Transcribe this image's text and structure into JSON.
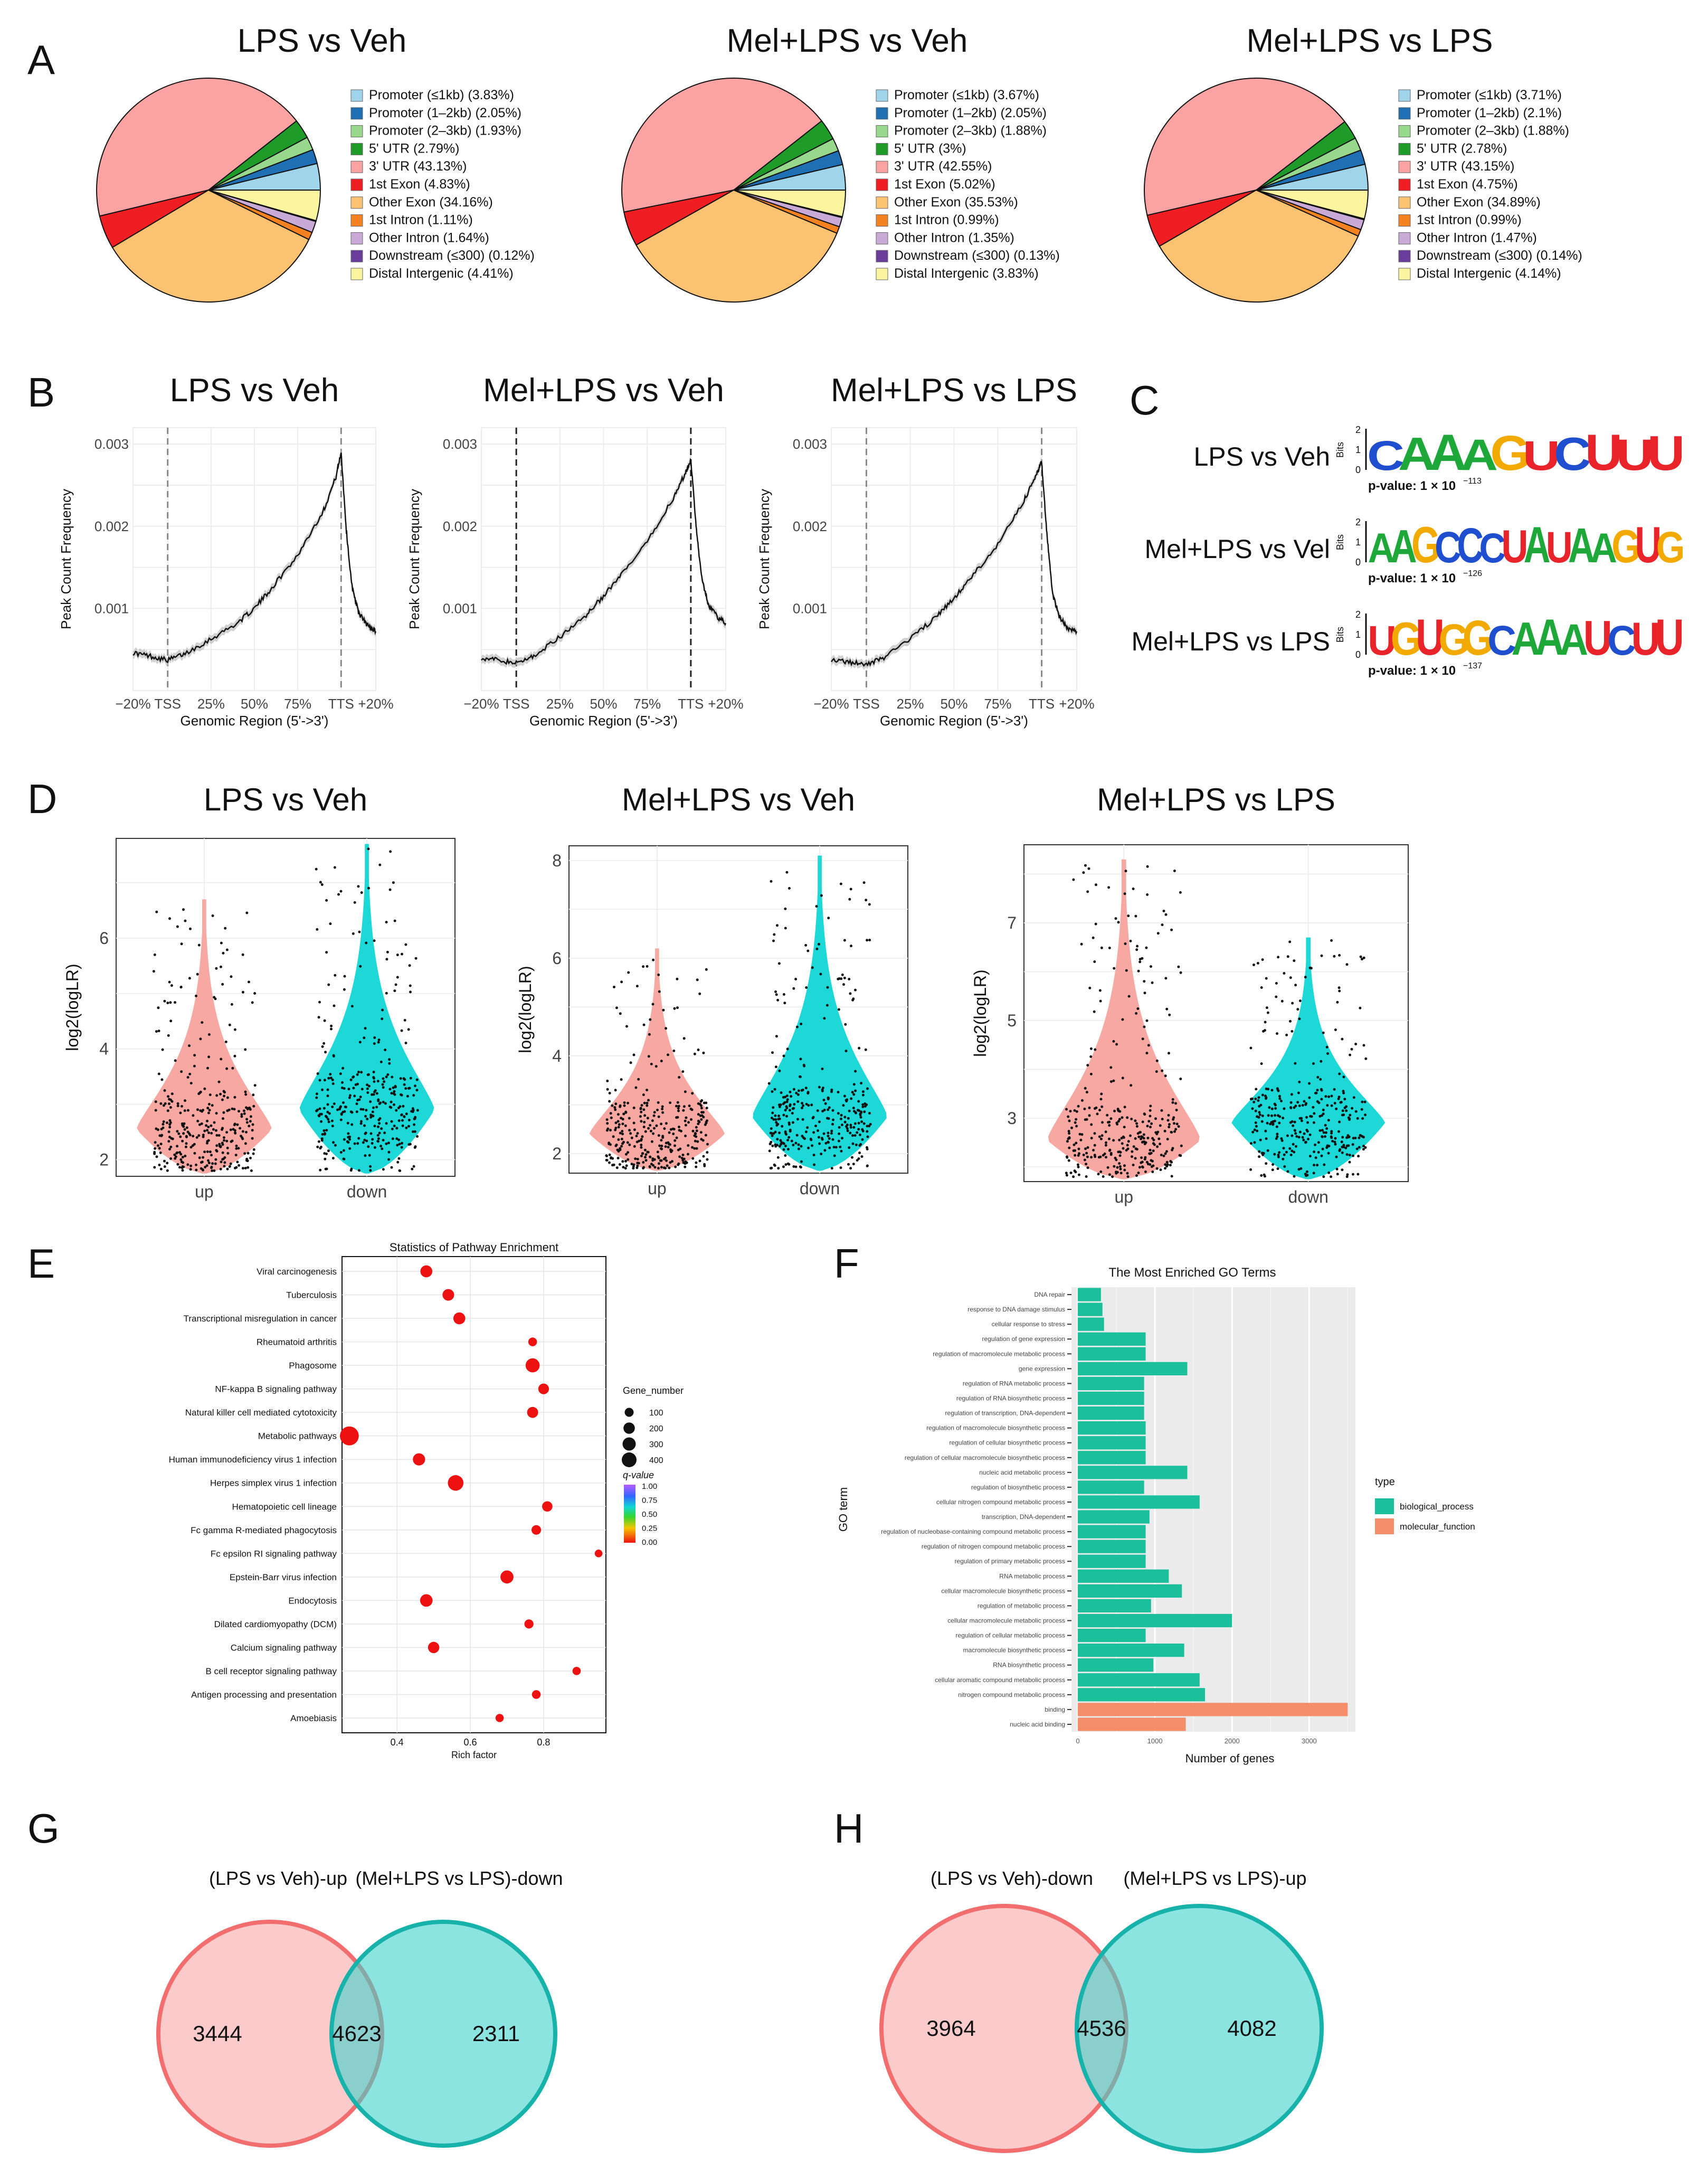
{
  "colors": {
    "promoter1": "#9fd4ea",
    "promoter2": "#1f6fb5",
    "promoter3": "#98d88c",
    "utr5": "#1e9b28",
    "utr3": "#fba3a3",
    "exon1": "#ee1e22",
    "otherExon": "#fbc271",
    "intron1": "#f58220",
    "otherIntron": "#c9a9d6",
    "downstream": "#6a3d9a",
    "distal": "#fbf5a0",
    "up": "#f8a8a2",
    "down": "#1ed8d8",
    "bio": "#1cbf9c",
    "mol": "#f58d6b",
    "vennLeft": "#f8a8a8",
    "vennRight": "#3fd2cc"
  },
  "chart_data": [
    {
      "panel": "A",
      "type": "pie",
      "subplots": [
        {
          "title": "LPS vs Veh",
          "legend": [
            "Promoter (≤1kb) (3.83%)",
            "Promoter (1–2kb) (2.05%)",
            "Promoter (2–3kb) (1.93%)",
            "5' UTR (2.79%)",
            "3' UTR (43.13%)",
            "1st Exon (4.83%)",
            "Other Exon (34.16%)",
            "1st Intron (1.11%)",
            "Other Intron (1.64%)",
            "Downstream (≤300) (0.12%)",
            "Distal Intergenic (4.41%)"
          ],
          "values": [
            3.83,
            2.05,
            1.93,
            2.79,
            43.13,
            4.83,
            34.16,
            1.11,
            1.64,
            0.12,
            4.41
          ]
        },
        {
          "title": "Mel+LPS vs Veh",
          "legend": [
            "Promoter (≤1kb) (3.67%)",
            "Promoter (1–2kb) (2.05%)",
            "Promoter (2–3kb) (1.88%)",
            "5' UTR (3%)",
            "3' UTR (42.55%)",
            "1st Exon (5.02%)",
            "Other Exon (35.53%)",
            "1st Intron (0.99%)",
            "Other Intron (1.35%)",
            "Downstream (≤300) (0.13%)",
            "Distal Intergenic (3.83%)"
          ],
          "values": [
            3.67,
            2.05,
            1.88,
            3.0,
            42.55,
            5.02,
            35.53,
            0.99,
            1.35,
            0.13,
            3.83
          ]
        },
        {
          "title": "Mel+LPS vs LPS",
          "legend": [
            "Promoter (≤1kb) (3.71%)",
            "Promoter (1–2kb) (2.1%)",
            "Promoter (2–3kb) (1.88%)",
            "5' UTR (2.78%)",
            "3' UTR (43.15%)",
            "1st Exon (4.75%)",
            "Other Exon (34.89%)",
            "1st Intron (0.99%)",
            "Other Intron (1.47%)",
            "Downstream (≤300) (0.14%)",
            "Distal Intergenic (4.14%)"
          ],
          "values": [
            3.71,
            2.1,
            1.88,
            2.78,
            43.15,
            4.75,
            34.89,
            0.99,
            1.47,
            0.14,
            4.14
          ]
        }
      ]
    },
    {
      "panel": "B",
      "type": "line",
      "xlabel": "Genomic Region (5'->3')",
      "ylabel": "Peak Count Frequency",
      "xticks": [
        "−20%",
        "TSS",
        "25%",
        "50%",
        "75%",
        "TTS",
        "+20%"
      ],
      "ylim": [
        0.0,
        0.0032
      ],
      "yticks": [
        "0.001",
        "0.002",
        "0.003"
      ],
      "x": [
        -20,
        -10,
        0,
        10,
        25,
        40,
        50,
        60,
        75,
        90,
        97,
        100,
        103,
        106,
        110,
        115,
        120
      ],
      "series": [
        {
          "title": "LPS vs Veh",
          "values": [
            0.00046,
            0.00042,
            0.00037,
            0.00045,
            0.00063,
            0.00082,
            0.001,
            0.00125,
            0.00165,
            0.0022,
            0.0026,
            0.0029,
            0.00195,
            0.0013,
            0.00095,
            0.0008,
            0.00072
          ]
        },
        {
          "title": "Mel+LPS vs Veh",
          "values": [
            0.0004,
            0.00037,
            0.00033,
            0.00042,
            0.00065,
            0.00092,
            0.00115,
            0.0014,
            0.0018,
            0.00235,
            0.00265,
            0.00282,
            0.002,
            0.0014,
            0.00105,
            0.0009,
            0.00082
          ]
        },
        {
          "title": "Mel+LPS vs LPS",
          "values": [
            0.00038,
            0.00035,
            0.00031,
            0.0004,
            0.00063,
            0.0009,
            0.00112,
            0.00138,
            0.00178,
            0.00232,
            0.00262,
            0.00278,
            0.0019,
            0.0012,
            0.0009,
            0.00075,
            0.00072
          ]
        }
      ]
    },
    {
      "panel": "C",
      "type": "other",
      "rows": [
        {
          "label": "LPS vs Veh",
          "motif": "CAAAGUCUUU",
          "pvalue": "p-value: 1 × 10",
          "exp": "−113"
        },
        {
          "label": "Mel+LPS vs Vel",
          "motif": "AAGCCCUAUAAGUG",
          "pvalue": "p-value: 1 × 10",
          "exp": "−126"
        },
        {
          "label": "Mel+LPS vs LPS",
          "motif": "UGUGGCAAAUCUU",
          "pvalue": "p-value: 1 × 10",
          "exp": "−137"
        }
      ],
      "axis": "Bits",
      "ticks": [
        "0",
        "1",
        "2"
      ]
    },
    {
      "panel": "D",
      "type": "violin",
      "ylabel": "log2(logLR)",
      "categories": [
        "up",
        "down"
      ],
      "subplots": [
        {
          "title": "LPS vs Veh",
          "ylim": [
            1.7,
            7.8
          ],
          "yticks": [
            2,
            4,
            6
          ],
          "up_max": 6.7,
          "down_max": 7.7
        },
        {
          "title": "Mel+LPS vs Veh",
          "ylim": [
            1.6,
            8.3
          ],
          "yticks": [
            2,
            4,
            6,
            8
          ],
          "up_max": 6.2,
          "down_max": 8.1
        },
        {
          "title": "Mel+LPS vs LPS",
          "ylim": [
            1.7,
            8.6
          ],
          "yticks": [
            3,
            5,
            7
          ],
          "up_max": 8.3,
          "down_max": 6.7
        }
      ]
    },
    {
      "panel": "E",
      "type": "scatter",
      "title": "Statistics of Pathway Enrichment",
      "xlabel": "Rich factor",
      "xlim": [
        0.25,
        0.97
      ],
      "xticks": [
        "0.4",
        "0.6",
        "0.8"
      ],
      "size_legend_title": "Gene_number",
      "size_legend": [
        "100",
        "200",
        "300",
        "400"
      ],
      "color_legend_title": "q-value",
      "color_legend": [
        "1.00",
        "0.75",
        "0.50",
        "0.25",
        "0.00"
      ],
      "pathways": [
        "Viral carcinogenesis",
        "Tuberculosis",
        "Transcriptional misregulation in cancer",
        "Rheumatoid arthritis",
        "Phagosome",
        "NF-kappa B signaling pathway",
        "Natural killer cell mediated cytotoxicity",
        "Metabolic pathways",
        "Human immunodeficiency virus 1 infection",
        "Herpes simplex virus 1 infection",
        "Hematopoietic cell lineage",
        "Fc gamma R-mediated phagocytosis",
        "Fc epsilon RI signaling pathway",
        "Epstein-Barr virus infection",
        "Endocytosis",
        "Dilated cardiomyopathy (DCM)",
        "Calcium signaling pathway",
        "B cell receptor signaling pathway",
        "Antigen processing and presentation",
        "Amoebiasis"
      ],
      "rich_factor": [
        0.48,
        0.54,
        0.57,
        0.77,
        0.77,
        0.8,
        0.77,
        0.27,
        0.46,
        0.56,
        0.81,
        0.78,
        0.95,
        0.7,
        0.48,
        0.76,
        0.5,
        0.89,
        0.78,
        0.68
      ],
      "gene_number": [
        150,
        140,
        150,
        60,
        230,
        110,
        120,
        480,
        160,
        300,
        100,
        80,
        40,
        190,
        170,
        70,
        130,
        50,
        60,
        50
      ]
    },
    {
      "panel": "F",
      "type": "bar",
      "title": "The Most Enriched GO Terms",
      "xlabel": "Number of genes",
      "ylabel": "GO term",
      "xticks": [
        "0",
        "1000",
        "2000",
        "3000"
      ],
      "xlim": [
        0,
        3600
      ],
      "legend_title": "type",
      "legend": [
        "biological_process",
        "molecular_function"
      ],
      "categories": [
        "DNA repair",
        "response to DNA damage stimulus",
        "cellular response to stress",
        "regulation of gene expression",
        "regulation of macromolecule metabolic process",
        "gene expression",
        "regulation of RNA metabolic process",
        "regulation of RNA biosynthetic process",
        "regulation of transcription, DNA-dependent",
        "regulation of macromolecule biosynthetic process",
        "regulation of cellular biosynthetic process",
        "regulation of cellular macromolecule biosynthetic process",
        "nucleic acid metabolic process",
        "regulation of biosynthetic process",
        "cellular nitrogen compound metabolic process",
        "transcription, DNA-dependent",
        "regulation of nucleobase-containing compound metabolic process",
        "regulation of nitrogen compound metabolic process",
        "regulation of primary metabolic process",
        "RNA metabolic process",
        "cellular macromolecule biosynthetic process",
        "regulation of metabolic process",
        "cellular macromolecule metabolic process",
        "regulation of cellular metabolic process",
        "macromolecule biosynthetic process",
        "RNA biosynthetic process",
        "cellular aromatic compound metabolic process",
        "nitrogen compound metabolic process",
        "binding",
        "nucleic acid binding"
      ],
      "values": [
        300,
        320,
        340,
        880,
        880,
        1420,
        860,
        860,
        860,
        880,
        880,
        880,
        1420,
        860,
        1580,
        930,
        880,
        880,
        880,
        1180,
        1350,
        950,
        2000,
        880,
        1380,
        980,
        1580,
        1650,
        3500,
        1400
      ],
      "types": [
        "b",
        "b",
        "b",
        "b",
        "b",
        "b",
        "b",
        "b",
        "b",
        "b",
        "b",
        "b",
        "b",
        "b",
        "b",
        "b",
        "b",
        "b",
        "b",
        "b",
        "b",
        "b",
        "b",
        "b",
        "b",
        "b",
        "b",
        "b",
        "m",
        "m"
      ]
    },
    {
      "panel": "G",
      "type": "other",
      "left_label": "(LPS vs Veh)-up",
      "right_label": "(Mel+LPS vs LPS)-down",
      "left_only": "3444",
      "overlap": "4623",
      "right_only": "2311"
    },
    {
      "panel": "H",
      "type": "other",
      "left_label": "(LPS vs Veh)-down",
      "right_label": "(Mel+LPS vs LPS)-up",
      "left_only": "3964",
      "overlap": "4536",
      "right_only": "4082"
    }
  ],
  "panel_letters": [
    "A",
    "B",
    "C",
    "D",
    "E",
    "F",
    "G",
    "H"
  ]
}
